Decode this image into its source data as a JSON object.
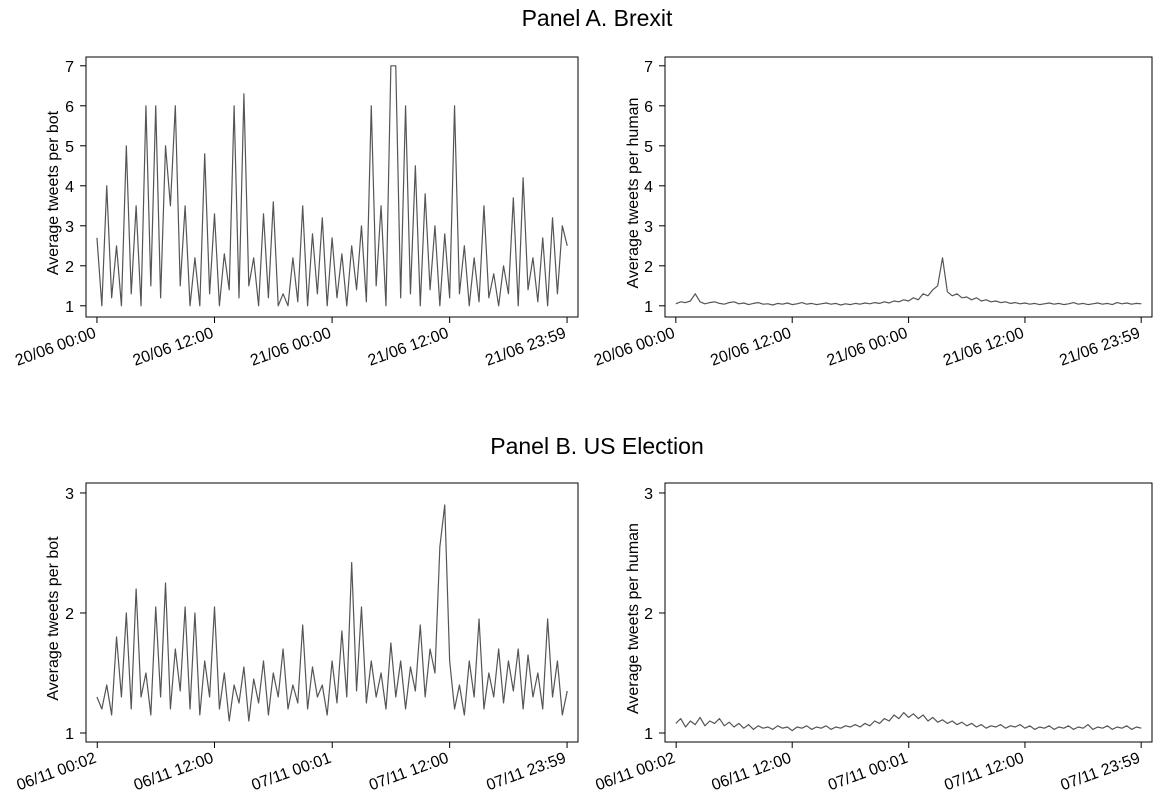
{
  "panel_titles": [
    "Panel A. Brexit",
    "Panel B. US Election"
  ],
  "chart_data": [
    {
      "type": "line",
      "ylabel": "Average tweets per bot",
      "color": "#555555",
      "xlim": [
        -67,
        2946
      ],
      "ylim": [
        0.72,
        7.22
      ],
      "yticks": [
        1,
        2,
        3,
        4,
        5,
        6,
        7
      ],
      "xticks": [
        {
          "value": 0,
          "label": "20/06 00:00"
        },
        {
          "value": 720,
          "label": "20/06 12:00"
        },
        {
          "value": 1440,
          "label": "21/06 00:00"
        },
        {
          "value": 2160,
          "label": "21/06 12:00"
        },
        {
          "value": 2879,
          "label": "21/06 23:59"
        }
      ],
      "x": [
        0,
        30,
        60,
        90,
        120,
        150,
        180,
        210,
        240,
        270,
        300,
        330,
        360,
        390,
        420,
        450,
        480,
        510,
        540,
        570,
        600,
        630,
        660,
        690,
        720,
        750,
        780,
        810,
        840,
        870,
        900,
        930,
        960,
        990,
        1020,
        1050,
        1080,
        1110,
        1140,
        1170,
        1200,
        1230,
        1260,
        1290,
        1320,
        1350,
        1380,
        1410,
        1440,
        1470,
        1500,
        1530,
        1560,
        1590,
        1620,
        1650,
        1680,
        1710,
        1740,
        1770,
        1800,
        1830,
        1860,
        1890,
        1920,
        1950,
        1980,
        2010,
        2040,
        2070,
        2100,
        2130,
        2160,
        2190,
        2220,
        2250,
        2280,
        2310,
        2340,
        2370,
        2400,
        2430,
        2460,
        2490,
        2520,
        2550,
        2580,
        2610,
        2640,
        2670,
        2700,
        2730,
        2760,
        2790,
        2820,
        2850,
        2880
      ],
      "values": [
        2.7,
        1,
        4,
        1.2,
        2.5,
        1,
        5,
        1.3,
        3.5,
        1,
        6,
        1.5,
        6,
        1.2,
        5,
        3.5,
        6,
        1.5,
        3.5,
        1,
        2.2,
        1,
        4.8,
        1.3,
        3.3,
        1,
        2.3,
        1.4,
        6,
        1.2,
        6.3,
        1.5,
        2.2,
        1,
        3.3,
        1.2,
        3.6,
        1,
        1.3,
        1,
        2.2,
        1.1,
        3.5,
        1,
        2.8,
        1.3,
        3.2,
        1,
        2.7,
        1.2,
        2.3,
        1,
        2.5,
        1.4,
        3,
        1.1,
        6,
        1.5,
        3.5,
        1,
        7,
        7,
        1.2,
        6,
        1.3,
        4.5,
        1,
        3.8,
        1.4,
        3,
        1,
        2.8,
        1.2,
        6,
        1.3,
        2.5,
        1,
        2.2,
        1.1,
        3.5,
        1.2,
        1.8,
        1,
        2,
        1.3,
        3.7,
        1,
        4.2,
        1.4,
        2.2,
        1.1,
        2.7,
        1,
        3.2,
        1.3,
        3,
        2.5
      ]
    },
    {
      "type": "line",
      "ylabel": "Average tweets per human",
      "color": "#555555",
      "xlim": [
        -67,
        2946
      ],
      "ylim": [
        0.72,
        7.22
      ],
      "yticks": [
        1,
        2,
        3,
        4,
        5,
        6,
        7
      ],
      "xticks": [
        {
          "value": 0,
          "label": "20/06 00:00"
        },
        {
          "value": 720,
          "label": "20/06 12:00"
        },
        {
          "value": 1440,
          "label": "21/06 00:00"
        },
        {
          "value": 2160,
          "label": "21/06 12:00"
        },
        {
          "value": 2879,
          "label": "21/06 23:59"
        }
      ],
      "x": [
        0,
        30,
        60,
        90,
        120,
        150,
        180,
        210,
        240,
        270,
        300,
        330,
        360,
        390,
        420,
        450,
        480,
        510,
        540,
        570,
        600,
        630,
        660,
        690,
        720,
        750,
        780,
        810,
        840,
        870,
        900,
        930,
        960,
        990,
        1020,
        1050,
        1080,
        1110,
        1140,
        1170,
        1200,
        1230,
        1260,
        1290,
        1320,
        1350,
        1380,
        1410,
        1440,
        1470,
        1500,
        1530,
        1560,
        1590,
        1620,
        1650,
        1680,
        1710,
        1740,
        1770,
        1800,
        1830,
        1860,
        1890,
        1920,
        1950,
        1980,
        2010,
        2040,
        2070,
        2100,
        2130,
        2160,
        2190,
        2220,
        2250,
        2280,
        2310,
        2340,
        2370,
        2400,
        2430,
        2460,
        2490,
        2520,
        2550,
        2580,
        2610,
        2640,
        2670,
        2700,
        2730,
        2760,
        2790,
        2820,
        2850,
        2880
      ],
      "values": [
        1.05,
        1.1,
        1.08,
        1.12,
        1.3,
        1.1,
        1.05,
        1.08,
        1.1,
        1.06,
        1.04,
        1.08,
        1.1,
        1.05,
        1.07,
        1.03,
        1.06,
        1.08,
        1.04,
        1.05,
        1.02,
        1.06,
        1.04,
        1.07,
        1.03,
        1.05,
        1.08,
        1.04,
        1.06,
        1.03,
        1.05,
        1.07,
        1.04,
        1.06,
        1.02,
        1.05,
        1.03,
        1.06,
        1.04,
        1.07,
        1.05,
        1.08,
        1.06,
        1.1,
        1.07,
        1.12,
        1.1,
        1.15,
        1.12,
        1.2,
        1.15,
        1.3,
        1.25,
        1.4,
        1.5,
        2.2,
        1.35,
        1.25,
        1.3,
        1.2,
        1.22,
        1.15,
        1.2,
        1.12,
        1.15,
        1.1,
        1.12,
        1.08,
        1.1,
        1.06,
        1.08,
        1.05,
        1.07,
        1.04,
        1.06,
        1.03,
        1.05,
        1.07,
        1.04,
        1.06,
        1.03,
        1.05,
        1.08,
        1.04,
        1.06,
        1.03,
        1.05,
        1.07,
        1.04,
        1.06,
        1.03,
        1.08,
        1.05,
        1.07,
        1.04,
        1.06,
        1.05
      ]
    },
    {
      "type": "line",
      "ylabel": "Average tweets per bot",
      "color": "#555555",
      "xlim": [
        -67,
        2946
      ],
      "ylim": [
        0.925,
        3.083
      ],
      "yticks": [
        1,
        2,
        3
      ],
      "xticks": [
        {
          "value": 2,
          "label": "06/11 00:02"
        },
        {
          "value": 720,
          "label": "06/11 12:00"
        },
        {
          "value": 1441,
          "label": "07/11 00:01"
        },
        {
          "value": 2160,
          "label": "07/11 12:00"
        },
        {
          "value": 2879,
          "label": "07/11 23:59"
        }
      ],
      "x": [
        0,
        30,
        60,
        90,
        120,
        150,
        180,
        210,
        240,
        270,
        300,
        330,
        360,
        390,
        420,
        450,
        480,
        510,
        540,
        570,
        600,
        630,
        660,
        690,
        720,
        750,
        780,
        810,
        840,
        870,
        900,
        930,
        960,
        990,
        1020,
        1050,
        1080,
        1110,
        1140,
        1170,
        1200,
        1230,
        1260,
        1290,
        1320,
        1350,
        1380,
        1410,
        1440,
        1470,
        1500,
        1530,
        1560,
        1590,
        1620,
        1650,
        1680,
        1710,
        1740,
        1770,
        1800,
        1830,
        1860,
        1890,
        1920,
        1950,
        1980,
        2010,
        2040,
        2070,
        2100,
        2130,
        2160,
        2190,
        2220,
        2250,
        2280,
        2310,
        2340,
        2370,
        2400,
        2430,
        2460,
        2490,
        2520,
        2550,
        2580,
        2610,
        2640,
        2670,
        2700,
        2730,
        2760,
        2790,
        2820,
        2850,
        2880
      ],
      "values": [
        1.3,
        1.2,
        1.4,
        1.15,
        1.8,
        1.3,
        2.0,
        1.2,
        2.2,
        1.3,
        1.5,
        1.15,
        2.05,
        1.3,
        2.25,
        1.2,
        1.7,
        1.35,
        2.05,
        1.2,
        2.0,
        1.15,
        1.6,
        1.3,
        2.05,
        1.2,
        1.5,
        1.1,
        1.4,
        1.25,
        1.55,
        1.1,
        1.45,
        1.25,
        1.6,
        1.15,
        1.5,
        1.3,
        1.7,
        1.2,
        1.4,
        1.25,
        1.9,
        1.2,
        1.55,
        1.3,
        1.4,
        1.15,
        1.6,
        1.25,
        1.85,
        1.3,
        2.42,
        1.35,
        2.05,
        1.25,
        1.6,
        1.3,
        1.5,
        1.2,
        1.75,
        1.3,
        1.6,
        1.2,
        1.55,
        1.35,
        1.9,
        1.3,
        1.7,
        1.5,
        2.55,
        2.9,
        1.6,
        1.2,
        1.4,
        1.15,
        1.6,
        1.3,
        1.95,
        1.2,
        1.5,
        1.3,
        1.7,
        1.25,
        1.6,
        1.35,
        1.7,
        1.2,
        1.65,
        1.3,
        1.5,
        1.2,
        1.95,
        1.3,
        1.6,
        1.15,
        1.35
      ]
    },
    {
      "type": "line",
      "ylabel": "Average tweets per human",
      "color": "#555555",
      "xlim": [
        -67,
        2946
      ],
      "ylim": [
        0.925,
        3.083
      ],
      "yticks": [
        1,
        2,
        3
      ],
      "xticks": [
        {
          "value": 2,
          "label": "06/11 00:02"
        },
        {
          "value": 720,
          "label": "06/11 12:00"
        },
        {
          "value": 1441,
          "label": "07/11 00:01"
        },
        {
          "value": 2160,
          "label": "07/11 12:00"
        },
        {
          "value": 2879,
          "label": "07/11 23:59"
        }
      ],
      "x": [
        0,
        30,
        60,
        90,
        120,
        150,
        180,
        210,
        240,
        270,
        300,
        330,
        360,
        390,
        420,
        450,
        480,
        510,
        540,
        570,
        600,
        630,
        660,
        690,
        720,
        750,
        780,
        810,
        840,
        870,
        900,
        930,
        960,
        990,
        1020,
        1050,
        1080,
        1110,
        1140,
        1170,
        1200,
        1230,
        1260,
        1290,
        1320,
        1350,
        1380,
        1410,
        1440,
        1470,
        1500,
        1530,
        1560,
        1590,
        1620,
        1650,
        1680,
        1710,
        1740,
        1770,
        1800,
        1830,
        1860,
        1890,
        1920,
        1950,
        1980,
        2010,
        2040,
        2070,
        2100,
        2130,
        2160,
        2190,
        2220,
        2250,
        2280,
        2310,
        2340,
        2370,
        2400,
        2430,
        2460,
        2490,
        2520,
        2550,
        2580,
        2610,
        2640,
        2670,
        2700,
        2730,
        2760,
        2790,
        2820,
        2850,
        2880
      ],
      "values": [
        1.08,
        1.12,
        1.05,
        1.1,
        1.07,
        1.13,
        1.06,
        1.1,
        1.08,
        1.12,
        1.06,
        1.09,
        1.05,
        1.08,
        1.04,
        1.07,
        1.03,
        1.06,
        1.04,
        1.05,
        1.03,
        1.06,
        1.04,
        1.05,
        1.02,
        1.05,
        1.04,
        1.06,
        1.03,
        1.05,
        1.04,
        1.06,
        1.03,
        1.05,
        1.04,
        1.06,
        1.05,
        1.07,
        1.05,
        1.08,
        1.06,
        1.1,
        1.08,
        1.12,
        1.1,
        1.15,
        1.12,
        1.17,
        1.13,
        1.16,
        1.12,
        1.15,
        1.1,
        1.13,
        1.09,
        1.11,
        1.08,
        1.1,
        1.07,
        1.09,
        1.06,
        1.08,
        1.05,
        1.07,
        1.04,
        1.06,
        1.05,
        1.07,
        1.04,
        1.06,
        1.05,
        1.07,
        1.04,
        1.06,
        1.03,
        1.05,
        1.04,
        1.06,
        1.03,
        1.05,
        1.04,
        1.06,
        1.03,
        1.05,
        1.04,
        1.07,
        1.03,
        1.05,
        1.04,
        1.06,
        1.03,
        1.05,
        1.04,
        1.06,
        1.03,
        1.05,
        1.04
      ]
    }
  ]
}
